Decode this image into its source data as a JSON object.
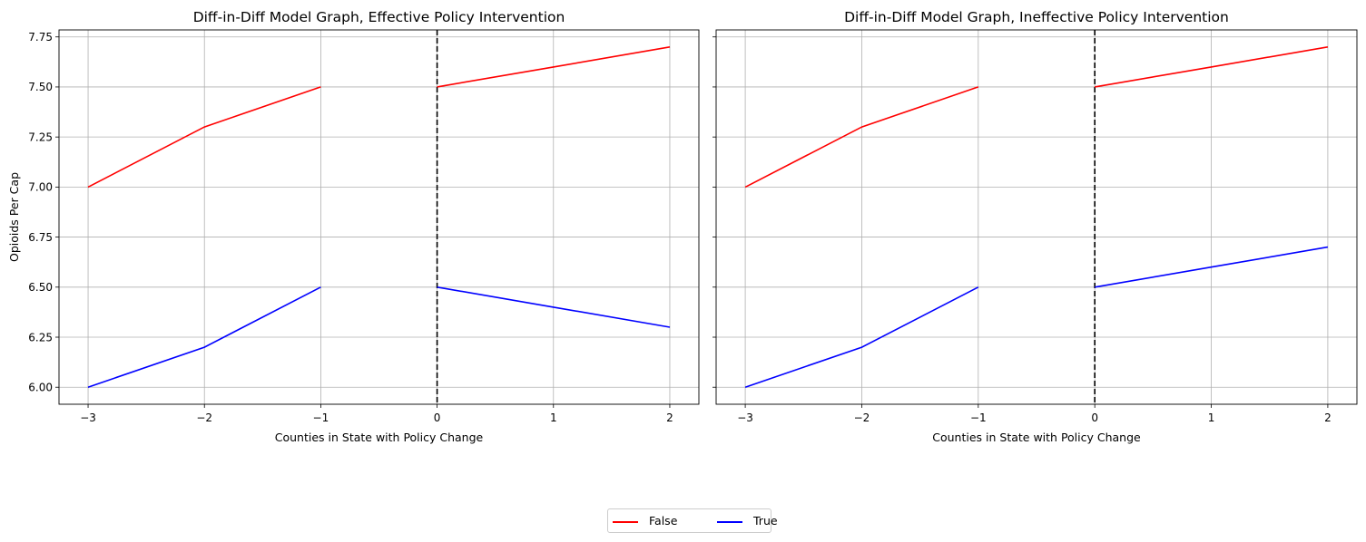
{
  "chart_data": [
    {
      "type": "line",
      "title": "Diff-in-Diff Model Graph, Effective Policy Intervention",
      "xlabel": "Counties in State with Policy Change",
      "ylabel": "Opioids Per Cap",
      "xlim": [
        -3.25,
        2.25
      ],
      "ylim": [
        5.915,
        7.785
      ],
      "xticks": [
        -3,
        -2,
        -1,
        0,
        1,
        2
      ],
      "xtick_labels": [
        "−3",
        "−2",
        "−1",
        "0",
        "1",
        "2"
      ],
      "yticks": [
        6.0,
        6.25,
        6.5,
        6.75,
        7.0,
        7.25,
        7.5,
        7.75
      ],
      "ytick_labels": [
        "6.00",
        "6.25",
        "6.50",
        "6.75",
        "7.00",
        "7.25",
        "7.50",
        "7.75"
      ],
      "grid": true,
      "vline": 0,
      "series": [
        {
          "name": "False",
          "color": "#ff0000",
          "segments": [
            {
              "x": [
                -3,
                -2,
                -1
              ],
              "y": [
                7.0,
                7.3,
                7.5
              ]
            },
            {
              "x": [
                0,
                1,
                2
              ],
              "y": [
                7.5,
                7.6,
                7.7
              ]
            }
          ]
        },
        {
          "name": "True",
          "color": "#0000ff",
          "segments": [
            {
              "x": [
                -3,
                -2,
                -1
              ],
              "y": [
                6.0,
                6.2,
                6.5
              ]
            },
            {
              "x": [
                0,
                1,
                2
              ],
              "y": [
                6.5,
                6.4,
                6.3
              ]
            }
          ]
        }
      ]
    },
    {
      "type": "line",
      "title": "Diff-in-Diff Model Graph, Ineffective Policy Intervention",
      "xlabel": "Counties in State with Policy Change",
      "ylabel": "",
      "xlim": [
        -3.25,
        2.25
      ],
      "ylim": [
        5.915,
        7.785
      ],
      "xticks": [
        -3,
        -2,
        -1,
        0,
        1,
        2
      ],
      "xtick_labels": [
        "−3",
        "−2",
        "−1",
        "0",
        "1",
        "2"
      ],
      "yticks": [
        6.0,
        6.25,
        6.5,
        6.75,
        7.0,
        7.25,
        7.5,
        7.75
      ],
      "ytick_labels": [],
      "grid": true,
      "vline": 0,
      "series": [
        {
          "name": "False",
          "color": "#ff0000",
          "segments": [
            {
              "x": [
                -3,
                -2,
                -1
              ],
              "y": [
                7.0,
                7.3,
                7.5
              ]
            },
            {
              "x": [
                0,
                1,
                2
              ],
              "y": [
                7.5,
                7.6,
                7.7
              ]
            }
          ]
        },
        {
          "name": "True",
          "color": "#0000ff",
          "segments": [
            {
              "x": [
                -3,
                -2,
                -1
              ],
              "y": [
                6.0,
                6.2,
                6.5
              ]
            },
            {
              "x": [
                0,
                1,
                2
              ],
              "y": [
                6.5,
                6.6,
                6.7
              ]
            }
          ]
        }
      ]
    }
  ],
  "legend": {
    "placement": "bottom-center",
    "items": [
      {
        "label": "False",
        "color": "#ff0000"
      },
      {
        "label": "True",
        "color": "#0000ff"
      }
    ]
  }
}
